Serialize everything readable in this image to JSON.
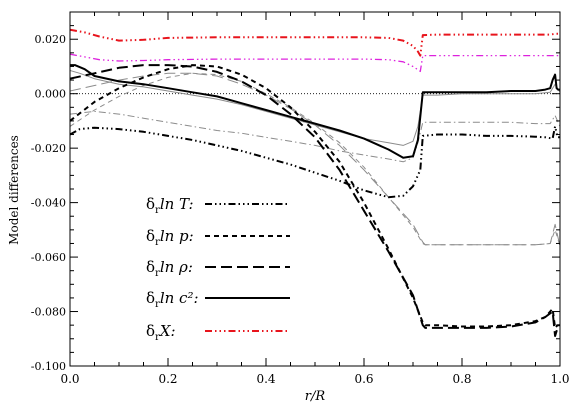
{
  "chart_data": {
    "type": "line",
    "xlabel": "r/R",
    "ylabel": "Model differences",
    "xlim": [
      0.0,
      1.0
    ],
    "ylim": [
      -0.1,
      0.03
    ],
    "xticks": [
      "0.0",
      "0.2",
      "0.4",
      "0.6",
      "0.8",
      "1.0"
    ],
    "yticks": [
      "-0.100",
      "-0.080",
      "-0.060",
      "-0.040",
      "-0.020",
      "0.000",
      "0.020"
    ],
    "xtick_values": [
      0.0,
      0.2,
      0.4,
      0.6,
      0.8,
      1.0
    ],
    "ytick_values": [
      -0.1,
      -0.08,
      -0.06,
      -0.04,
      -0.02,
      0.0,
      0.02
    ],
    "legend_placement": "center-left",
    "series": [
      {
        "name": "δ_r ln T",
        "legend_label": "δ",
        "legend_sub": "r",
        "legend_rest": "ln T:",
        "color": "#000000",
        "dash": "7,3,1.5,3,1.5,3,1.5,3",
        "width": 2,
        "in_legend": true,
        "x": [
          0.0,
          0.02,
          0.05,
          0.1,
          0.15,
          0.2,
          0.25,
          0.3,
          0.35,
          0.4,
          0.45,
          0.5,
          0.55,
          0.6,
          0.65,
          0.68,
          0.7,
          0.715,
          0.72,
          0.75,
          0.8,
          0.85,
          0.9,
          0.95,
          0.97,
          0.985,
          0.99,
          0.995,
          1.0
        ],
        "y": [
          -0.015,
          -0.013,
          -0.0125,
          -0.013,
          -0.014,
          -0.0155,
          -0.017,
          -0.019,
          -0.021,
          -0.0235,
          -0.026,
          -0.029,
          -0.032,
          -0.0355,
          -0.038,
          -0.0375,
          -0.034,
          -0.028,
          -0.0155,
          -0.015,
          -0.015,
          -0.0155,
          -0.0155,
          -0.0158,
          -0.016,
          -0.0165,
          -0.012,
          -0.016,
          -0.016
        ]
      },
      {
        "name": "δ_r ln p",
        "legend_label": "δ",
        "legend_sub": "r",
        "legend_rest": "ln p:",
        "color": "#000000",
        "dash": "5,4",
        "width": 2,
        "in_legend": true,
        "x": [
          0.0,
          0.05,
          0.1,
          0.15,
          0.2,
          0.25,
          0.3,
          0.35,
          0.4,
          0.45,
          0.5,
          0.55,
          0.6,
          0.65,
          0.7,
          0.72,
          0.725,
          0.75,
          0.8,
          0.85,
          0.9,
          0.95,
          0.97,
          0.985,
          0.99,
          0.995,
          1.0
        ],
        "y": [
          -0.01,
          -0.003,
          0.002,
          0.006,
          0.009,
          0.0105,
          0.01,
          0.007,
          0.002,
          -0.005,
          -0.014,
          -0.025,
          -0.04,
          -0.057,
          -0.075,
          -0.084,
          -0.085,
          -0.085,
          -0.0855,
          -0.0855,
          -0.085,
          -0.0835,
          -0.082,
          -0.079,
          -0.086,
          -0.085,
          -0.085
        ]
      },
      {
        "name": "δ_r ln ρ",
        "legend_label": "δ",
        "legend_sub": "r",
        "legend_rest": "ln ρ:",
        "color": "#000000",
        "dash": "11,5",
        "width": 2,
        "in_legend": true,
        "x": [
          0.0,
          0.05,
          0.1,
          0.15,
          0.2,
          0.25,
          0.3,
          0.35,
          0.4,
          0.45,
          0.5,
          0.55,
          0.6,
          0.65,
          0.7,
          0.72,
          0.725,
          0.75,
          0.8,
          0.85,
          0.9,
          0.95,
          0.97,
          0.985,
          0.99,
          0.995,
          1.0
        ],
        "y": [
          0.0055,
          0.0075,
          0.0095,
          0.0105,
          0.0105,
          0.01,
          0.008,
          0.0045,
          -0.0005,
          -0.0075,
          -0.016,
          -0.028,
          -0.043,
          -0.058,
          -0.074,
          -0.085,
          -0.086,
          -0.086,
          -0.086,
          -0.086,
          -0.0855,
          -0.084,
          -0.082,
          -0.08,
          -0.089,
          -0.086,
          -0.086
        ]
      },
      {
        "name": "δ_r ln c²",
        "legend_label": "δ",
        "legend_sub": "r",
        "legend_rest": "ln c²:",
        "color": "#000000",
        "dash": "",
        "width": 2,
        "in_legend": true,
        "x": [
          0.0,
          0.01,
          0.03,
          0.05,
          0.1,
          0.15,
          0.2,
          0.25,
          0.3,
          0.35,
          0.4,
          0.45,
          0.5,
          0.55,
          0.6,
          0.65,
          0.68,
          0.7,
          0.71,
          0.72,
          0.75,
          0.8,
          0.85,
          0.9,
          0.95,
          0.97,
          0.98,
          0.985,
          0.99,
          0.993,
          0.996,
          1.0
        ],
        "y": [
          0.0105,
          0.0105,
          0.009,
          0.0065,
          0.0045,
          0.0035,
          0.002,
          0.0005,
          -0.001,
          -0.0035,
          -0.006,
          -0.0085,
          -0.011,
          -0.0135,
          -0.0165,
          -0.0205,
          -0.0235,
          -0.023,
          -0.017,
          0.0005,
          0.0005,
          0.0005,
          0.0005,
          0.001,
          0.001,
          0.0015,
          0.002,
          0.005,
          0.007,
          0.002,
          0.0015,
          0.0015
        ]
      },
      {
        "name": "δ_r X",
        "legend_label": "δ",
        "legend_sub": "r",
        "legend_rest": "X:",
        "color": "#e8141c",
        "dash": "7,3,1.5,3,1.5,3,1.5,3",
        "width": 2,
        "in_legend": true,
        "x": [
          0.0,
          0.03,
          0.06,
          0.1,
          0.15,
          0.2,
          0.3,
          0.4,
          0.5,
          0.6,
          0.65,
          0.68,
          0.7,
          0.71,
          0.715,
          0.72,
          0.75,
          0.8,
          0.9,
          0.95,
          0.98,
          0.99,
          1.0
        ],
        "y": [
          0.0235,
          0.0225,
          0.021,
          0.0195,
          0.0198,
          0.0205,
          0.0207,
          0.0207,
          0.0207,
          0.0207,
          0.0205,
          0.0195,
          0.0175,
          0.0155,
          0.014,
          0.0215,
          0.0217,
          0.0217,
          0.0217,
          0.0217,
          0.0217,
          0.022,
          0.022
        ]
      },
      {
        "name": "",
        "color": "#dd22dd",
        "dash": "7,3,1.5,3,1.5,3,1.5,3",
        "width": 1.3,
        "in_legend": false,
        "x": [
          0.0,
          0.03,
          0.06,
          0.1,
          0.15,
          0.2,
          0.3,
          0.4,
          0.5,
          0.6,
          0.65,
          0.68,
          0.7,
          0.71,
          0.715,
          0.72,
          0.75,
          0.8,
          0.9,
          0.95,
          0.98,
          0.99,
          1.0
        ],
        "y": [
          0.0145,
          0.0135,
          0.0125,
          0.012,
          0.0122,
          0.0125,
          0.0127,
          0.0127,
          0.0127,
          0.0127,
          0.0125,
          0.0117,
          0.01,
          0.0088,
          0.0082,
          0.014,
          0.014,
          0.014,
          0.014,
          0.014,
          0.014,
          0.014,
          0.014
        ]
      },
      {
        "name": "",
        "color": "#8c8c8c",
        "dash": "",
        "width": 1,
        "in_legend": false,
        "x": [
          0.0,
          0.02,
          0.05,
          0.1,
          0.15,
          0.2,
          0.25,
          0.3,
          0.35,
          0.4,
          0.45,
          0.5,
          0.55,
          0.6,
          0.65,
          0.68,
          0.7,
          0.71,
          0.72,
          0.75,
          0.8,
          0.9,
          0.95,
          0.98,
          0.99,
          1.0
        ],
        "y": [
          0.0085,
          0.0075,
          0.0055,
          0.0035,
          0.0025,
          0.001,
          -0.0005,
          -0.002,
          -0.004,
          -0.0065,
          -0.009,
          -0.0115,
          -0.014,
          -0.0165,
          -0.018,
          -0.019,
          -0.0175,
          -0.012,
          -0.0005,
          -0.0005,
          0.0,
          0.0,
          0.0,
          0.0005,
          0.0035,
          0.0005
        ]
      },
      {
        "name": "",
        "color": "#8c8c8c",
        "dash": "7,3,1.5,3",
        "width": 1,
        "in_legend": false,
        "x": [
          0.0,
          0.05,
          0.1,
          0.15,
          0.2,
          0.25,
          0.3,
          0.35,
          0.4,
          0.45,
          0.5,
          0.55,
          0.6,
          0.65,
          0.68,
          0.7,
          0.71,
          0.72,
          0.75,
          0.8,
          0.9,
          0.95,
          0.98,
          0.99,
          1.0
        ],
        "y": [
          -0.0075,
          -0.0065,
          -0.0075,
          -0.009,
          -0.0105,
          -0.012,
          -0.0135,
          -0.0145,
          -0.016,
          -0.0175,
          -0.019,
          -0.021,
          -0.0225,
          -0.024,
          -0.025,
          -0.0235,
          -0.018,
          -0.0105,
          -0.0105,
          -0.0105,
          -0.0105,
          -0.011,
          -0.011,
          -0.008,
          -0.012
        ]
      },
      {
        "name": "",
        "color": "#8c8c8c",
        "dash": "5,4",
        "width": 1,
        "in_legend": false,
        "x": [
          0.0,
          0.05,
          0.1,
          0.15,
          0.2,
          0.25,
          0.3,
          0.35,
          0.4,
          0.45,
          0.5,
          0.55,
          0.6,
          0.65,
          0.7,
          0.72,
          0.725,
          0.75,
          0.8,
          0.9,
          0.95,
          0.98,
          0.99,
          1.0
        ],
        "y": [
          -0.012,
          -0.006,
          -0.001,
          0.003,
          0.006,
          0.0075,
          0.007,
          0.0045,
          0.0,
          -0.005,
          -0.011,
          -0.018,
          -0.027,
          -0.038,
          -0.049,
          -0.055,
          -0.0555,
          -0.0555,
          -0.0555,
          -0.0555,
          -0.0555,
          -0.055,
          -0.05,
          -0.056
        ]
      },
      {
        "name": "",
        "color": "#8c8c8c",
        "dash": "11,5",
        "width": 1,
        "in_legend": false,
        "x": [
          0.0,
          0.05,
          0.1,
          0.15,
          0.2,
          0.25,
          0.3,
          0.35,
          0.4,
          0.45,
          0.5,
          0.55,
          0.6,
          0.65,
          0.7,
          0.72,
          0.725,
          0.75,
          0.8,
          0.9,
          0.95,
          0.98,
          0.99,
          1.0
        ],
        "y": [
          0.001,
          0.003,
          0.005,
          0.0065,
          0.0075,
          0.0075,
          0.0065,
          0.0035,
          -0.0005,
          -0.0055,
          -0.0115,
          -0.019,
          -0.028,
          -0.038,
          -0.048,
          -0.0545,
          -0.0555,
          -0.0555,
          -0.0555,
          -0.0555,
          -0.0555,
          -0.055,
          -0.048,
          -0.056
        ]
      }
    ]
  }
}
